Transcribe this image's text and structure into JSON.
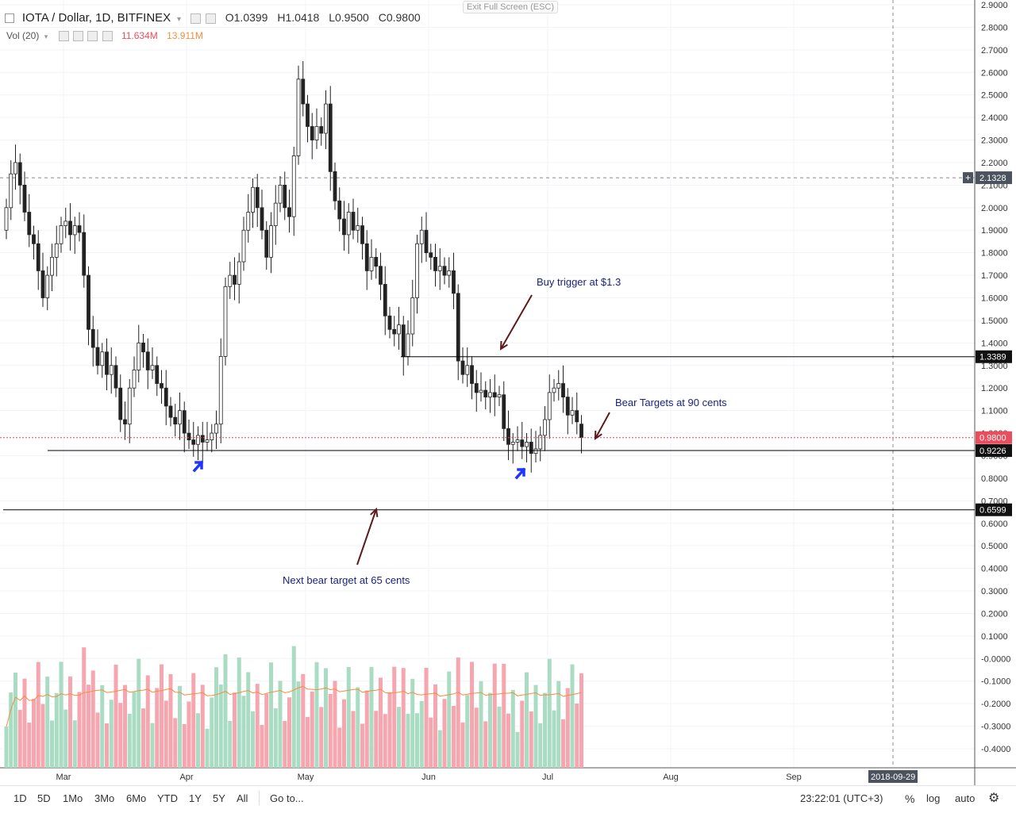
{
  "header": {
    "symbol": "IOTA / Dollar, 1D, BITFINEX",
    "open_label": "O",
    "open": "1.0399",
    "high_label": "H",
    "high": "1.0418",
    "low_label": "L",
    "low": "0.9500",
    "close_label": "C",
    "close": "0.9800",
    "vol_label": "Vol (20)",
    "vol_value": "11.634M",
    "vol_ma": "13.911M",
    "exit_fullscreen": "Exit Full Screen (ESC)"
  },
  "toolbar": {
    "ranges": [
      "1D",
      "5D",
      "1Mo",
      "3Mo",
      "6Mo",
      "YTD",
      "1Y",
      "5Y",
      "All"
    ],
    "goto": "Go to...",
    "clock": "23:22:01 (UTC+3)",
    "percent": "%",
    "log": "log",
    "auto": "auto"
  },
  "colors": {
    "up": "#53b987",
    "down": "#eb4d5c",
    "vol_up": "#a9dcc3",
    "vol_down": "#f5a6ae",
    "ma": "#f68c3e",
    "annotation": "#1a237e",
    "arrow": "#5d1b1b",
    "blue_arrow": "#1e35ff"
  },
  "chart_data": {
    "type": "candlestick",
    "title": "IOTA / Dollar, 1D, BITFINEX",
    "y_ticks": [
      "2.9000",
      "2.8000",
      "2.7000",
      "2.6000",
      "2.5000",
      "2.4000",
      "2.3000",
      "2.2000",
      "2.1000",
      "2.0000",
      "1.9000",
      "1.8000",
      "1.7000",
      "1.6000",
      "1.5000",
      "1.4000",
      "1.3000",
      "1.2000",
      "1.1000",
      "1.0000",
      "0.9000",
      "0.8000",
      "0.7000",
      "0.6000",
      "0.5000",
      "0.4000",
      "0.3000",
      "0.2000",
      "0.1000",
      "-0.0000",
      "-0.1000",
      "-0.2000",
      "-0.3000",
      "-0.4000"
    ],
    "y_range": [
      -0.48,
      2.9
    ],
    "x_labels": [
      "Mar",
      "Apr",
      "May",
      "Jun",
      "Jul",
      "Aug",
      "Sep"
    ],
    "x_label_dates": [
      "2018-03-01",
      "2018-04-01",
      "2018-05-01",
      "2018-06-01",
      "2018-07-01",
      "2018-08-01",
      "2018-09-01"
    ],
    "crosshair_date_label": "2018-09-29",
    "crosshair_price": "2.1328",
    "price_labels": [
      {
        "value": 1.3389,
        "text": "1.3389"
      },
      {
        "value": 0.98,
        "text": "0.9800"
      },
      {
        "value": 0.9226,
        "text": "0.9226"
      },
      {
        "value": 0.6599,
        "text": "0.6599"
      }
    ],
    "horizontal_lines": [
      {
        "value": 1.3389,
        "from": "2018-05-25",
        "to": "end"
      },
      {
        "value": 0.9226,
        "from": "2018-02-08",
        "to": "end"
      },
      {
        "value": 0.6599,
        "from": "start",
        "to": "end"
      }
    ],
    "annotations": [
      {
        "text": "Buy trigger at $1.3"
      },
      {
        "text": "Bear Targets at 90 cents"
      },
      {
        "text": "Next bear target at 65 cents"
      }
    ],
    "candles_close": [
      2.0,
      2.15,
      2.2,
      2.1,
      1.98,
      1.88,
      1.84,
      1.72,
      1.6,
      1.7,
      1.78,
      1.84,
      1.92,
      1.94,
      1.88,
      1.92,
      1.89,
      1.7,
      1.46,
      1.38,
      1.3,
      1.36,
      1.26,
      1.3,
      1.2,
      1.06,
      1.04,
      1.2,
      1.28,
      1.4,
      1.36,
      1.28,
      1.3,
      1.22,
      1.2,
      1.12,
      1.07,
      1.04,
      1.1,
      1.0,
      0.97,
      0.95,
      0.99,
      0.96,
      0.97,
      1.0,
      1.04,
      1.34,
      1.65,
      1.7,
      1.66,
      1.76,
      1.9,
      1.98,
      2.09,
      2.0,
      1.9,
      1.78,
      1.92,
      2.02,
      2.1,
      2.0,
      1.96,
      2.23,
      2.57,
      2.46,
      2.36,
      2.3,
      2.36,
      2.33,
      2.46,
      2.16,
      2.03,
      1.95,
      1.88,
      1.98,
      1.9,
      1.92,
      1.84,
      1.72,
      1.78,
      1.74,
      1.66,
      1.52,
      1.46,
      1.44,
      1.48,
      1.34,
      1.44,
      1.6,
      1.84,
      1.9,
      1.8,
      1.78,
      1.72,
      1.74,
      1.7,
      1.72,
      1.62,
      1.32,
      1.26,
      1.3,
      1.22,
      1.18,
      1.19,
      1.16,
      1.18,
      1.16,
      1.17,
      1.02,
      0.95,
      0.96,
      0.97,
      0.94,
      0.96,
      0.91,
      0.93,
      0.99,
      1.06,
      1.18,
      1.2,
      1.22,
      1.16,
      1.08,
      1.1,
      1.05,
      0.98
    ],
    "candles_open": [
      1.9,
      2.0,
      2.15,
      2.2,
      2.1,
      1.98,
      1.88,
      1.84,
      1.72,
      1.6,
      1.7,
      1.78,
      1.84,
      1.92,
      1.94,
      1.88,
      1.92,
      1.89,
      1.7,
      1.46,
      1.38,
      1.3,
      1.36,
      1.26,
      1.3,
      1.2,
      1.06,
      1.04,
      1.2,
      1.28,
      1.4,
      1.36,
      1.28,
      1.3,
      1.22,
      1.2,
      1.12,
      1.07,
      1.04,
      1.1,
      1.0,
      0.97,
      0.95,
      0.99,
      0.96,
      0.97,
      1.0,
      1.04,
      1.34,
      1.65,
      1.7,
      1.66,
      1.76,
      1.9,
      1.98,
      2.09,
      2.0,
      1.9,
      1.78,
      1.92,
      2.02,
      2.1,
      2.0,
      1.96,
      2.23,
      2.57,
      2.46,
      2.36,
      2.3,
      2.36,
      2.33,
      2.46,
      2.16,
      2.03,
      1.95,
      1.88,
      1.98,
      1.9,
      1.92,
      1.84,
      1.72,
      1.78,
      1.74,
      1.66,
      1.52,
      1.46,
      1.44,
      1.48,
      1.34,
      1.44,
      1.6,
      1.84,
      1.9,
      1.8,
      1.78,
      1.72,
      1.74,
      1.7,
      1.72,
      1.62,
      1.32,
      1.26,
      1.3,
      1.22,
      1.18,
      1.19,
      1.16,
      1.18,
      1.16,
      1.17,
      1.02,
      0.95,
      0.96,
      0.97,
      0.94,
      0.96,
      0.91,
      0.93,
      0.99,
      1.06,
      1.18,
      1.2,
      1.22,
      1.16,
      1.08,
      1.1,
      1.04
    ],
    "volume_ma_shape": "orange moving average line over volume bars"
  }
}
